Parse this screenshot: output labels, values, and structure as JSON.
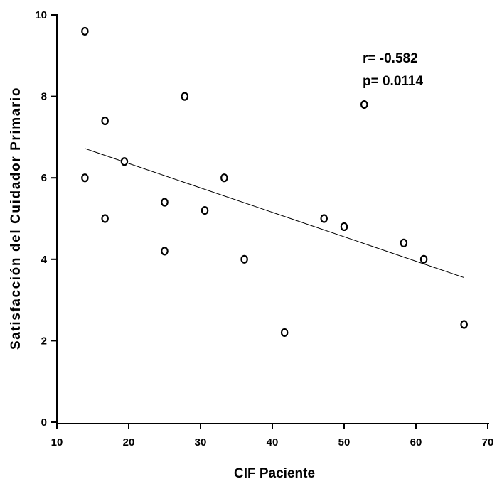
{
  "chart_data": {
    "type": "scatter",
    "title": "",
    "xlabel": "CIF Paciente",
    "ylabel": "Satisfacción del Cuidador Primario",
    "xlim": [
      10,
      70
    ],
    "ylim": [
      0,
      10
    ],
    "xticks": [
      "10",
      "20",
      "30",
      "40",
      "50",
      "60",
      "70"
    ],
    "yticks": [
      "0",
      "2",
      "4",
      "6",
      "8",
      "10"
    ],
    "grid": false,
    "series": [
      {
        "x": [
          13.9,
          13.9,
          16.7,
          16.7,
          19.4,
          25.0,
          25.0,
          27.8,
          30.6,
          33.3,
          36.1,
          41.7,
          47.2,
          50.0,
          52.8,
          58.3,
          61.1,
          66.7
        ],
        "y": [
          9.6,
          6.0,
          7.4,
          5.0,
          6.4,
          5.4,
          4.2,
          8.0,
          5.2,
          6.0,
          4.0,
          2.2,
          5.0,
          4.8,
          7.8,
          4.4,
          4.0,
          2.4
        ]
      }
    ],
    "trendline": {
      "x": [
        13.9,
        66.7
      ],
      "y": [
        6.72,
        3.55
      ]
    },
    "annotations": [
      "r= -0.582",
      "p= 0.0114"
    ]
  }
}
